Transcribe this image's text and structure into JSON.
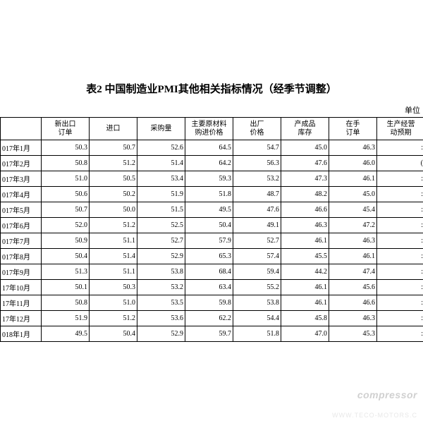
{
  "title": "表2 中国制造业PMI其他相关指标情况（经季节调整）",
  "unit": "单位",
  "watermark1": "compressor",
  "watermark2": "WWW.TECO-MOTORS.C",
  "table": {
    "columns": [
      "",
      "新出口\n订单",
      "进口",
      "采购量",
      "主要原材料\n购进价格",
      "出厂\n价格",
      "产成品\n库存",
      "在手\n订单",
      "生产经营\n动预期"
    ],
    "rows": [
      {
        "period": "017年1月",
        "v": [
          "50.3",
          "50.7",
          "52.6",
          "64.5",
          "54.7",
          "45.0",
          "46.3",
          ":"
        ]
      },
      {
        "period": "017年2月",
        "v": [
          "50.8",
          "51.2",
          "51.4",
          "64.2",
          "56.3",
          "47.6",
          "46.0",
          "("
        ]
      },
      {
        "period": "017年3月",
        "v": [
          "51.0",
          "50.5",
          "53.4",
          "59.3",
          "53.2",
          "47.3",
          "46.1",
          ":"
        ]
      },
      {
        "period": "017年4月",
        "v": [
          "50.6",
          "50.2",
          "51.9",
          "51.8",
          "48.7",
          "48.2",
          "45.0",
          ":"
        ]
      },
      {
        "period": "017年5月",
        "v": [
          "50.7",
          "50.0",
          "51.5",
          "49.5",
          "47.6",
          "46.6",
          "45.4",
          ":"
        ]
      },
      {
        "period": "017年6月",
        "v": [
          "52.0",
          "51.2",
          "52.5",
          "50.4",
          "49.1",
          "46.3",
          "47.2",
          ":"
        ]
      },
      {
        "period": "017年7月",
        "v": [
          "50.9",
          "51.1",
          "52.7",
          "57.9",
          "52.7",
          "46.1",
          "46.3",
          ":"
        ]
      },
      {
        "period": "017年8月",
        "v": [
          "50.4",
          "51.4",
          "52.9",
          "65.3",
          "57.4",
          "45.5",
          "46.1",
          ":"
        ]
      },
      {
        "period": "017年9月",
        "v": [
          "51.3",
          "51.1",
          "53.8",
          "68.4",
          "59.4",
          "44.2",
          "47.4",
          ":"
        ]
      },
      {
        "period": "17年10月",
        "v": [
          "50.1",
          "50.3",
          "53.2",
          "63.4",
          "55.2",
          "46.1",
          "45.6",
          ":"
        ]
      },
      {
        "period": "17年11月",
        "v": [
          "50.8",
          "51.0",
          "53.5",
          "59.8",
          "53.8",
          "46.1",
          "46.6",
          ":"
        ]
      },
      {
        "period": "17年12月",
        "v": [
          "51.9",
          "51.2",
          "53.6",
          "62.2",
          "54.4",
          "45.8",
          "46.3",
          ":"
        ]
      },
      {
        "period": "018年1月",
        "v": [
          "49.5",
          "50.4",
          "52.9",
          "59.7",
          "51.8",
          "47.0",
          "45.3",
          ":"
        ]
      }
    ]
  }
}
